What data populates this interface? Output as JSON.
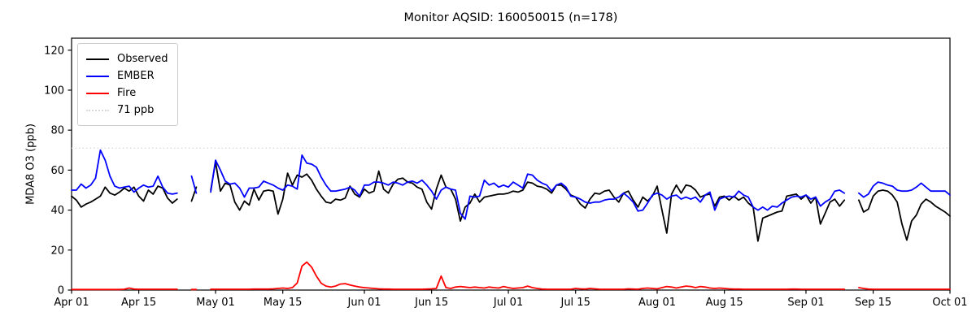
{
  "chart_data": {
    "type": "line",
    "title": "Monitor AQSID: 160050015 (n=178)",
    "xlabel": "",
    "ylabel": "MDA8 O3 (ppb)",
    "n_label": "n=178",
    "ylim": [
      0,
      126
    ],
    "yticks": [
      0,
      20,
      40,
      60,
      80,
      100,
      120
    ],
    "x_range": {
      "start": "Apr 01",
      "end": "Oct 01",
      "days": 183
    },
    "xticks": [
      {
        "label": "Apr 01",
        "day": 0
      },
      {
        "label": "Apr 15",
        "day": 14
      },
      {
        "label": "May 01",
        "day": 30
      },
      {
        "label": "May 15",
        "day": 44
      },
      {
        "label": "Jun 01",
        "day": 61
      },
      {
        "label": "Jun 15",
        "day": 75
      },
      {
        "label": "Jul 01",
        "day": 91
      },
      {
        "label": "Jul 15",
        "day": 105
      },
      {
        "label": "Aug 01",
        "day": 122
      },
      {
        "label": "Aug 15",
        "day": 136
      },
      {
        "label": "Sep 01",
        "day": 153
      },
      {
        "label": "Sep 15",
        "day": 167
      },
      {
        "label": "Oct 01",
        "day": 183
      }
    ],
    "grid": false,
    "legend_position": "upper left",
    "threshold": {
      "label": "71 ppb",
      "value": 71,
      "color": "#d9d9d9",
      "style": "dotted"
    },
    "series": [
      {
        "name": "Observed",
        "color": "#000000",
        "values": [
          47,
          45,
          41.5,
          43,
          44,
          45.5,
          47,
          51.5,
          48.5,
          47.5,
          49,
          51,
          49.5,
          51.5,
          47,
          44.5,
          50,
          48,
          52,
          51,
          46,
          43.5,
          45.5,
          null,
          null,
          44.5,
          51.5,
          null,
          null,
          50,
          64,
          49.5,
          53.5,
          52.5,
          44,
          40,
          44.5,
          42.5,
          50.5,
          45,
          49.5,
          50,
          49.5,
          38,
          45.5,
          58.5,
          52.5,
          57.5,
          56.5,
          58,
          55,
          50.5,
          47,
          44,
          43.5,
          45.5,
          45,
          46,
          52,
          48,
          46.5,
          50.5,
          48.5,
          49.5,
          59.5,
          50.5,
          48.5,
          53,
          55.5,
          56,
          54,
          53.5,
          51.5,
          50.5,
          44,
          40.5,
          50.5,
          57.5,
          51.5,
          50.5,
          45.5,
          34.5,
          41.5,
          43.5,
          48,
          44,
          46.5,
          47,
          47.5,
          48,
          48,
          48.5,
          49.5,
          49,
          50,
          54,
          53.5,
          52,
          51.5,
          50.5,
          48.5,
          52.5,
          52.5,
          50.5,
          47.5,
          46.5,
          43,
          41,
          45.5,
          48.5,
          48,
          49.5,
          50,
          46.5,
          44,
          48.5,
          49.5,
          45,
          41.5,
          46.5,
          44.5,
          47,
          52,
          40,
          28.5,
          48,
          52.5,
          48.5,
          52.5,
          52,
          50,
          46.5,
          47.5,
          48,
          42,
          46.5,
          47,
          45,
          47,
          45,
          46.5,
          43.5,
          41.5,
          24.5,
          36,
          37,
          38,
          39,
          39.5,
          47,
          47.5,
          48,
          45.5,
          47.5,
          43.5,
          46.5,
          33,
          38.5,
          44,
          45.5,
          42,
          45,
          null,
          null,
          45,
          39,
          40.5,
          47,
          49.5,
          50,
          49.5,
          47.5,
          44,
          33,
          25,
          34.5,
          37.5,
          43,
          45.5,
          44,
          42,
          40.5,
          39,
          37
        ]
      },
      {
        "name": "EMBER",
        "color": "#0000ff",
        "values": [
          50,
          50,
          53,
          51,
          52.5,
          56,
          70,
          65,
          57,
          52,
          51,
          51.5,
          52,
          49,
          51,
          52.5,
          51.5,
          52,
          57,
          51.5,
          48.5,
          48,
          48.5,
          null,
          null,
          57,
          48.5,
          null,
          null,
          49,
          65,
          60,
          54.5,
          53,
          53.5,
          51,
          46.5,
          51,
          51,
          51.5,
          54.5,
          53.5,
          52.5,
          51,
          50,
          52.5,
          52,
          50.5,
          67.5,
          63.5,
          63,
          61.5,
          56.5,
          52.5,
          49.5,
          49.5,
          50,
          50.5,
          51.5,
          50,
          47,
          52.5,
          52.5,
          54,
          54,
          53.5,
          52.5,
          54,
          53.5,
          52.5,
          54,
          54.5,
          53.5,
          55,
          52.5,
          49.5,
          45.5,
          50,
          51.5,
          50.5,
          50,
          38.5,
          35.5,
          47,
          46.5,
          47,
          55,
          52.5,
          53.5,
          51.5,
          52.5,
          51.5,
          54,
          52.5,
          51,
          58,
          57.5,
          55,
          53.5,
          52.5,
          49.5,
          52.5,
          53.5,
          51.5,
          47,
          46.5,
          45.5,
          44,
          43.5,
          44,
          44,
          45,
          45.5,
          45.5,
          46.5,
          48.5,
          46.5,
          44,
          39.5,
          40,
          43.5,
          47.5,
          48.5,
          47.5,
          45.5,
          47,
          47.5,
          45.5,
          46.5,
          45.5,
          46.5,
          44,
          47.5,
          49,
          40,
          45.5,
          46.5,
          47,
          46.5,
          49.5,
          47.5,
          46.5,
          41.5,
          40,
          41.5,
          40,
          42,
          41.5,
          43.5,
          45,
          46.5,
          47,
          46.5,
          47.5,
          45.5,
          46.5,
          42,
          44,
          45.5,
          49.5,
          50,
          48.5,
          null,
          null,
          48.5,
          46.5,
          48,
          52,
          54,
          53.5,
          52.5,
          52,
          50,
          49.5,
          49.5,
          50,
          51.5,
          53.5,
          51.5,
          49.5,
          49.5,
          49.5,
          49.5,
          47.5
        ]
      },
      {
        "name": "Fire",
        "color": "#ff0000",
        "values": [
          0.3,
          0.3,
          0.3,
          0.3,
          0.3,
          0.3,
          0.3,
          0.3,
          0.3,
          0.3,
          0.3,
          0.4,
          1,
          0.5,
          0.4,
          0.4,
          0.4,
          0.4,
          0.4,
          0.4,
          0.4,
          0.4,
          0.4,
          null,
          null,
          0.3,
          0.3,
          null,
          null,
          0.4,
          0.4,
          0.4,
          0.4,
          0.4,
          0.4,
          0.4,
          0.4,
          0.4,
          0.5,
          0.5,
          0.5,
          0.5,
          0.6,
          0.8,
          1,
          0.8,
          1.2,
          3.5,
          12,
          14,
          11.5,
          7,
          3.4,
          2,
          1.5,
          2,
          3,
          3.2,
          2.5,
          2,
          1.5,
          1.2,
          1,
          0.8,
          0.6,
          0.5,
          0.5,
          0.4,
          0.4,
          0.4,
          0.4,
          0.4,
          0.4,
          0.4,
          0.5,
          0.6,
          0.8,
          7,
          1.2,
          0.8,
          1.5,
          1.8,
          1.5,
          1.2,
          1.5,
          1.2,
          1,
          1.5,
          1.2,
          1,
          1.8,
          1.2,
          0.8,
          1,
          1.2,
          2,
          1.2,
          0.8,
          0.5,
          0.4,
          0.4,
          0.4,
          0.4,
          0.4,
          0.4,
          0.8,
          0.6,
          0.5,
          0.8,
          0.6,
          0.4,
          0.4,
          0.4,
          0.4,
          0.4,
          0.4,
          0.6,
          0.5,
          0.4,
          0.8,
          1,
          0.8,
          0.6,
          1.2,
          1.8,
          1.5,
          1,
          1.5,
          2,
          1.8,
          1.2,
          1.8,
          1.5,
          1,
          0.8,
          1,
          0.8,
          0.6,
          0.5,
          0.5,
          0.4,
          0.4,
          0.4,
          0.4,
          0.4,
          0.4,
          0.4,
          0.4,
          0.4,
          0.4,
          0.5,
          0.5,
          0.4,
          0.4,
          0.4,
          0.4,
          0.4,
          0.4,
          0.4,
          0.4,
          0.4,
          0.4,
          null,
          null,
          1.2,
          0.8,
          0.5,
          0.4,
          0.4,
          0.4,
          0.4,
          0.4,
          0.4,
          0.4,
          0.4,
          0.4,
          0.4,
          0.4,
          0.4,
          0.4,
          0.4,
          0.4,
          0.4,
          0.4
        ]
      }
    ]
  },
  "legend": {
    "items": [
      {
        "label": "Observed"
      },
      {
        "label": "EMBER"
      },
      {
        "label": "Fire"
      },
      {
        "label": "71 ppb"
      }
    ]
  }
}
